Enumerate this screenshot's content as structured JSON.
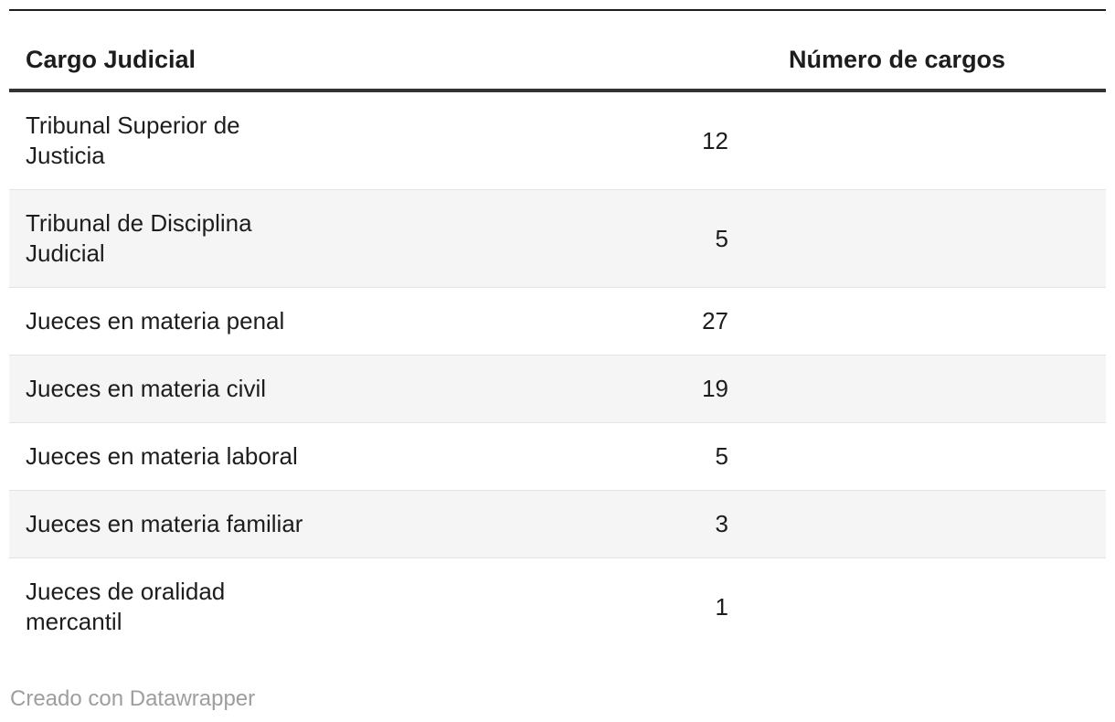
{
  "chart_data": {
    "type": "table",
    "columns": [
      "Cargo Judicial",
      "Número de cargos"
    ],
    "rows": [
      [
        "Tribunal Superior de Justicia",
        12
      ],
      [
        "Tribunal de Disciplina Judicial",
        5
      ],
      [
        "Jueces en materia penal",
        27
      ],
      [
        "Jueces en materia civil",
        19
      ],
      [
        "Jueces en materia laboral",
        5
      ],
      [
        "Jueces en materia familiar",
        3
      ],
      [
        "Jueces de oralidad mercantil",
        1
      ]
    ],
    "layout": {
      "zebra_stripes": true,
      "number_column_alignment": "right",
      "header_rule": true
    }
  },
  "table": {
    "header": {
      "cargo_label": "Cargo Judicial",
      "numero_label": "Número de cargos"
    },
    "rows": [
      {
        "cargo": "Tribunal Superior de\nJusticia",
        "numero": "12"
      },
      {
        "cargo": "Tribunal de Disciplina\nJudicial",
        "numero": "5"
      },
      {
        "cargo": "Jueces en materia penal",
        "numero": "27"
      },
      {
        "cargo": "Jueces en materia civil",
        "numero": "19"
      },
      {
        "cargo": "Jueces en materia laboral",
        "numero": "5"
      },
      {
        "cargo": "Jueces en materia familiar",
        "numero": "3"
      },
      {
        "cargo": "Jueces de oralidad\nmercantil",
        "numero": "1"
      }
    ]
  },
  "footer": {
    "attribution": "Creado con Datawrapper"
  },
  "colors": {
    "text": "#1d1d1d",
    "top_rule": "#1d1d1d",
    "header_rule": "#333333",
    "zebra_row": "#f5f5f5",
    "row_divider": "#e4e4e4",
    "attribution_text": "#9e9e9e",
    "background": "#ffffff"
  }
}
